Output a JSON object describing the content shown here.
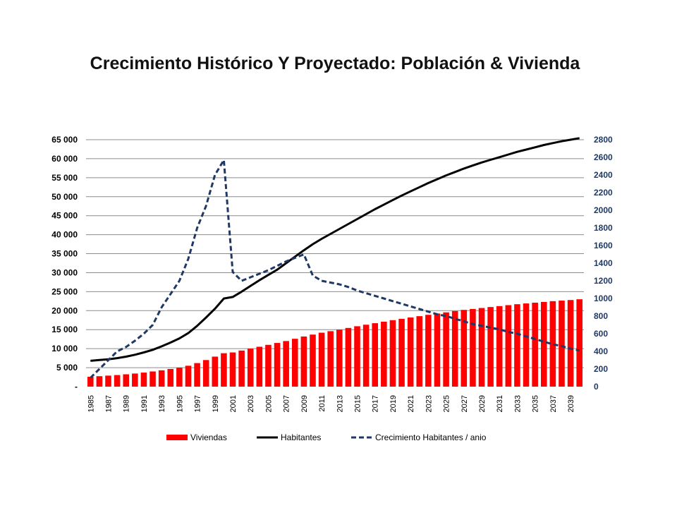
{
  "chart_data": {
    "type": "bar",
    "title": "Crecimiento Histórico Y Proyectado: Población & Vivienda",
    "x": [
      1985,
      1986,
      1987,
      1988,
      1989,
      1990,
      1991,
      1992,
      1993,
      1994,
      1995,
      1996,
      1997,
      1998,
      1999,
      2000,
      2001,
      2002,
      2003,
      2004,
      2005,
      2006,
      2007,
      2008,
      2009,
      2010,
      2011,
      2012,
      2013,
      2014,
      2015,
      2016,
      2017,
      2018,
      2019,
      2020,
      2021,
      2022,
      2023,
      2024,
      2025,
      2026,
      2027,
      2028,
      2029,
      2030,
      2031,
      2032,
      2033,
      2034,
      2035,
      2036,
      2037,
      2038,
      2039,
      2040
    ],
    "x_tick_labels": [
      "1985",
      "1987",
      "1989",
      "1991",
      "1993",
      "1995",
      "1997",
      "1999",
      "2001",
      "2003",
      "2005",
      "2007",
      "2009",
      "2011",
      "2013",
      "2015",
      "2017",
      "2019",
      "2021",
      "2023",
      "2025",
      "2027",
      "2029",
      "2031",
      "2033",
      "2035",
      "2037",
      "2039"
    ],
    "y_left": {
      "ylim": [
        0,
        65000
      ],
      "tick_labels": [
        "-",
        "5 000",
        "10 000",
        "15 000",
        "20 000",
        "25 000",
        "30 000",
        "35 000",
        "40 000",
        "45 000",
        "50 000",
        "55 000",
        "60 000",
        "65 000"
      ]
    },
    "y_right": {
      "ylim": [
        0,
        2800
      ],
      "tick_labels": [
        "0",
        "200",
        "400",
        "600",
        "800",
        "1000",
        "1200",
        "1400",
        "1600",
        "1800",
        "2000",
        "2200",
        "2400",
        "2600",
        "2800"
      ]
    },
    "grid": true,
    "legend_position": "bottom",
    "series": [
      {
        "name": "Viviendas",
        "type": "bar",
        "axis": "left",
        "color": "#ff0000",
        "values": [
          2600,
          2750,
          2900,
          3050,
          3250,
          3450,
          3700,
          4000,
          4300,
          4650,
          5000,
          5500,
          6200,
          7000,
          7900,
          8800,
          9000,
          9500,
          10000,
          10500,
          11000,
          11500,
          12000,
          12600,
          13200,
          13700,
          14200,
          14600,
          15000,
          15450,
          15900,
          16300,
          16700,
          17100,
          17500,
          17850,
          18200,
          18550,
          18900,
          19250,
          19550,
          19900,
          20200,
          20450,
          20700,
          20950,
          21200,
          21450,
          21700,
          21900,
          22100,
          22300,
          22500,
          22650,
          22800,
          23000
        ]
      },
      {
        "name": "Habitantes",
        "type": "line",
        "axis": "left",
        "color": "#000000",
        "values": [
          6800,
          7000,
          7200,
          7500,
          7900,
          8400,
          9000,
          9700,
          10600,
          11600,
          12700,
          14100,
          16000,
          18200,
          20500,
          23200,
          23600,
          25000,
          26500,
          28000,
          29400,
          30800,
          32500,
          34200,
          35900,
          37500,
          38900,
          40200,
          41500,
          42800,
          44100,
          45400,
          46700,
          47900,
          49100,
          50300,
          51400,
          52500,
          53600,
          54600,
          55600,
          56500,
          57400,
          58200,
          59000,
          59700,
          60400,
          61100,
          61800,
          62400,
          63000,
          63600,
          64100,
          64600,
          65000,
          65400
        ]
      },
      {
        "name": "Crecimiento Habitantes / anio",
        "type": "line",
        "style": "dashed",
        "axis": "right",
        "color": "#1f3864",
        "values": [
          100,
          200,
          300,
          400,
          450,
          520,
          600,
          700,
          900,
          1050,
          1200,
          1450,
          1800,
          2050,
          2400,
          2570,
          1300,
          1200,
          1240,
          1280,
          1320,
          1370,
          1420,
          1460,
          1500,
          1260,
          1200,
          1180,
          1160,
          1130,
          1090,
          1060,
          1030,
          1000,
          970,
          940,
          910,
          880,
          850,
          820,
          800,
          770,
          740,
          710,
          690,
          670,
          650,
          620,
          600,
          570,
          540,
          510,
          480,
          460,
          430,
          410
        ]
      }
    ]
  }
}
